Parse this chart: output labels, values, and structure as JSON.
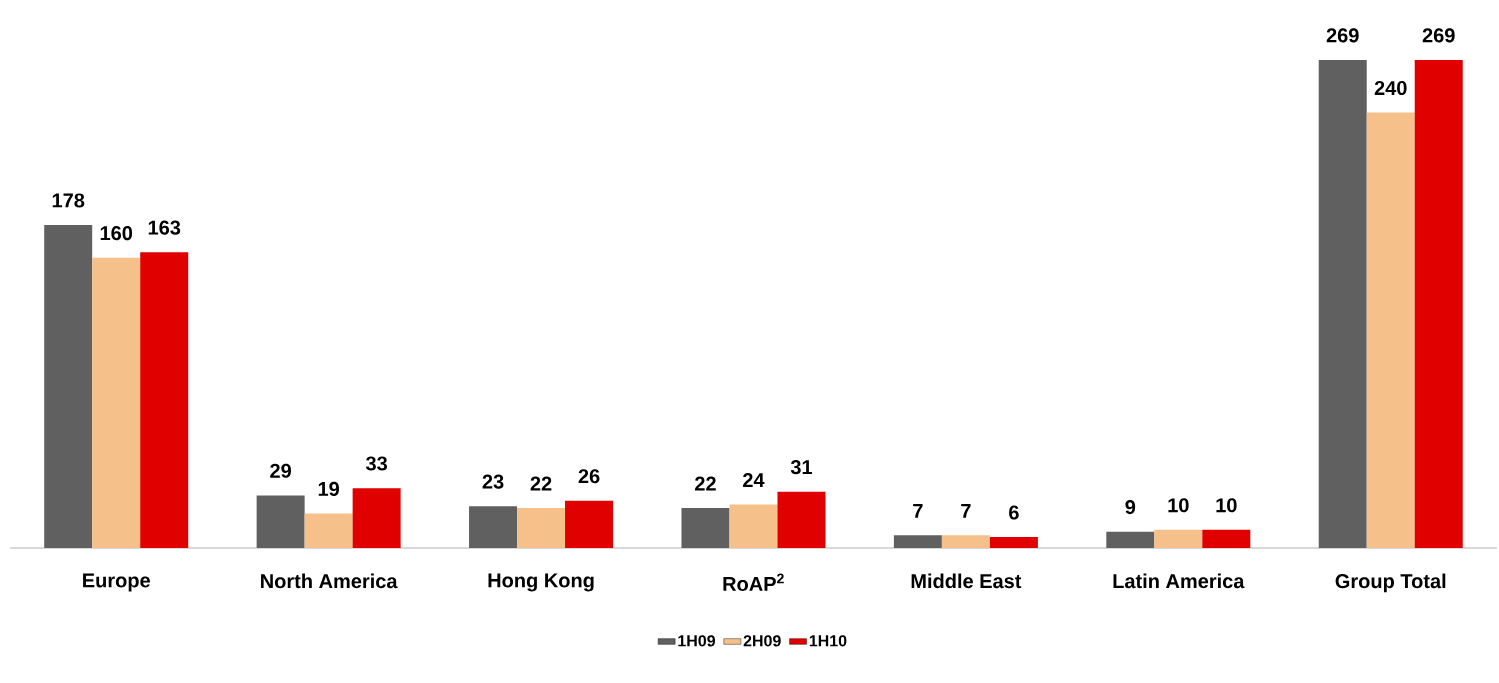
{
  "chart_data": {
    "type": "bar",
    "categories": [
      "Europe",
      "North America",
      "Hong Kong",
      "RoAP$^{2}$",
      "Middle East",
      "Latin America",
      "Group Total"
    ],
    "series": [
      {
        "name": "1H09",
        "color": "#606060",
        "values": [
          178,
          29,
          23,
          22,
          7,
          9,
          269
        ]
      },
      {
        "name": "2H09",
        "color": "#f5c08a",
        "values": [
          160,
          19,
          22,
          24,
          7,
          10,
          240
        ]
      },
      {
        "name": "1H10",
        "color": "#e00000",
        "values": [
          163,
          33,
          26,
          31,
          6,
          10,
          269
        ]
      }
    ],
    "ylim": [
      0,
      269
    ],
    "data_labels": true,
    "legend": "bottom"
  }
}
